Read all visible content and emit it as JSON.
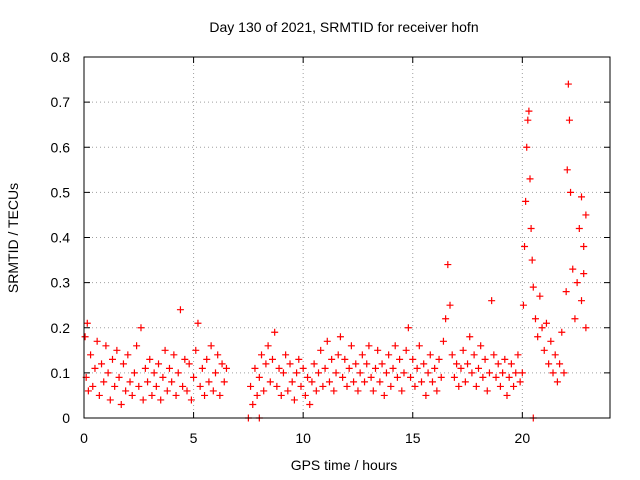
{
  "chart_data": {
    "type": "scatter",
    "title": "Day 130 of 2021, SRMTID for receiver hofn",
    "xlabel": "GPS time / hours",
    "ylabel": "SRMTID / TECUs",
    "xlim": [
      0,
      24
    ],
    "ylim": [
      0,
      0.8
    ],
    "xticks": [
      0,
      5,
      10,
      15,
      20
    ],
    "xtick_labels": [
      "0",
      "5",
      "10",
      "15",
      "20"
    ],
    "yticks": [
      0,
      0.1,
      0.2,
      0.3,
      0.4,
      0.5,
      0.6,
      0.7,
      0.8
    ],
    "ytick_labels": [
      "0",
      "0.1",
      "0.2",
      "0.3",
      "0.4",
      "0.5",
      "0.6",
      "0.7",
      "0.8"
    ],
    "grid": true,
    "marker": "+",
    "series": [
      {
        "name": "SRMTID",
        "color": "#ff0000",
        "points": [
          [
            0.05,
            0.18
          ],
          [
            0.1,
            0.09
          ],
          [
            0.15,
            0.21
          ],
          [
            0.2,
            0.06
          ],
          [
            0.3,
            0.14
          ],
          [
            0.4,
            0.07
          ],
          [
            0.5,
            0.11
          ],
          [
            0.6,
            0.17
          ],
          [
            0.7,
            0.05
          ],
          [
            0.8,
            0.12
          ],
          [
            0.9,
            0.08
          ],
          [
            1.0,
            0.16
          ],
          [
            1.1,
            0.1
          ],
          [
            1.2,
            0.04
          ],
          [
            1.3,
            0.13
          ],
          [
            1.4,
            0.07
          ],
          [
            1.5,
            0.15
          ],
          [
            1.6,
            0.09
          ],
          [
            1.7,
            0.03
          ],
          [
            1.8,
            0.12
          ],
          [
            1.9,
            0.06
          ],
          [
            2.0,
            0.14
          ],
          [
            2.1,
            0.08
          ],
          [
            2.2,
            0.05
          ],
          [
            2.3,
            0.1
          ],
          [
            2.4,
            0.16
          ],
          [
            2.5,
            0.07
          ],
          [
            2.6,
            0.2
          ],
          [
            2.7,
            0.04
          ],
          [
            2.8,
            0.11
          ],
          [
            2.9,
            0.08
          ],
          [
            3.0,
            0.13
          ],
          [
            3.1,
            0.05
          ],
          [
            3.2,
            0.1
          ],
          [
            3.3,
            0.07
          ],
          [
            3.4,
            0.12
          ],
          [
            3.5,
            0.04
          ],
          [
            3.6,
            0.09
          ],
          [
            3.7,
            0.15
          ],
          [
            3.8,
            0.06
          ],
          [
            3.9,
            0.11
          ],
          [
            4.0,
            0.08
          ],
          [
            4.1,
            0.14
          ],
          [
            4.2,
            0.05
          ],
          [
            4.3,
            0.1
          ],
          [
            4.4,
            0.24
          ],
          [
            4.5,
            0.07
          ],
          [
            4.6,
            0.13
          ],
          [
            4.7,
            0.06
          ],
          [
            4.8,
            0.12
          ],
          [
            4.9,
            0.04
          ],
          [
            5.0,
            0.09
          ],
          [
            5.1,
            0.15
          ],
          [
            5.2,
            0.21
          ],
          [
            5.3,
            0.07
          ],
          [
            5.4,
            0.11
          ],
          [
            5.5,
            0.05
          ],
          [
            5.6,
            0.13
          ],
          [
            5.7,
            0.08
          ],
          [
            5.8,
            0.16
          ],
          [
            5.9,
            0.06
          ],
          [
            6.0,
            0.1
          ],
          [
            6.1,
            0.14
          ],
          [
            6.2,
            0.05
          ],
          [
            6.3,
            0.12
          ],
          [
            6.4,
            0.08
          ],
          [
            6.5,
            0.11
          ],
          [
            7.5,
            0.0
          ],
          [
            8.0,
            0.0
          ],
          [
            7.6,
            0.07
          ],
          [
            7.7,
            0.03
          ],
          [
            7.8,
            0.11
          ],
          [
            7.9,
            0.05
          ],
          [
            8.0,
            0.09
          ],
          [
            8.1,
            0.14
          ],
          [
            8.2,
            0.06
          ],
          [
            8.3,
            0.12
          ],
          [
            8.4,
            0.16
          ],
          [
            8.5,
            0.08
          ],
          [
            8.6,
            0.13
          ],
          [
            8.7,
            0.19
          ],
          [
            8.8,
            0.07
          ],
          [
            8.9,
            0.11
          ],
          [
            9.0,
            0.05
          ],
          [
            9.1,
            0.1
          ],
          [
            9.2,
            0.14
          ],
          [
            9.3,
            0.06
          ],
          [
            9.4,
            0.12
          ],
          [
            9.5,
            0.08
          ],
          [
            9.6,
            0.04
          ],
          [
            9.7,
            0.1
          ],
          [
            9.8,
            0.13
          ],
          [
            9.9,
            0.07
          ],
          [
            10.0,
            0.11
          ],
          [
            10.1,
            0.05
          ],
          [
            10.2,
            0.09
          ],
          [
            10.3,
            0.03
          ],
          [
            10.4,
            0.08
          ],
          [
            10.5,
            0.12
          ],
          [
            10.6,
            0.06
          ],
          [
            10.7,
            0.1
          ],
          [
            10.8,
            0.15
          ],
          [
            10.9,
            0.07
          ],
          [
            11.0,
            0.11
          ],
          [
            11.1,
            0.17
          ],
          [
            11.2,
            0.08
          ],
          [
            11.3,
            0.13
          ],
          [
            11.4,
            0.06
          ],
          [
            11.5,
            0.1
          ],
          [
            11.6,
            0.14
          ],
          [
            11.7,
            0.18
          ],
          [
            11.8,
            0.09
          ],
          [
            11.9,
            0.13
          ],
          [
            12.0,
            0.07
          ],
          [
            12.1,
            0.11
          ],
          [
            12.2,
            0.16
          ],
          [
            12.3,
            0.08
          ],
          [
            12.4,
            0.12
          ],
          [
            12.5,
            0.06
          ],
          [
            12.6,
            0.1
          ],
          [
            12.7,
            0.14
          ],
          [
            12.8,
            0.08
          ],
          [
            12.9,
            0.12
          ],
          [
            13.0,
            0.16
          ],
          [
            13.1,
            0.09
          ],
          [
            13.2,
            0.06
          ],
          [
            13.3,
            0.11
          ],
          [
            13.4,
            0.15
          ],
          [
            13.5,
            0.08
          ],
          [
            13.6,
            0.12
          ],
          [
            13.7,
            0.05
          ],
          [
            13.8,
            0.1
          ],
          [
            13.9,
            0.14
          ],
          [
            14.0,
            0.07
          ],
          [
            14.1,
            0.11
          ],
          [
            14.2,
            0.16
          ],
          [
            14.3,
            0.09
          ],
          [
            14.4,
            0.13
          ],
          [
            14.5,
            0.06
          ],
          [
            14.6,
            0.1
          ],
          [
            14.7,
            0.15
          ],
          [
            14.8,
            0.2
          ],
          [
            14.9,
            0.09
          ],
          [
            15.0,
            0.13
          ],
          [
            15.1,
            0.07
          ],
          [
            15.2,
            0.11
          ],
          [
            15.3,
            0.16
          ],
          [
            15.4,
            0.08
          ],
          [
            15.5,
            0.12
          ],
          [
            15.6,
            0.05
          ],
          [
            15.7,
            0.1
          ],
          [
            15.8,
            0.14
          ],
          [
            15.9,
            0.08
          ],
          [
            16.0,
            0.11
          ],
          [
            16.1,
            0.06
          ],
          [
            16.2,
            0.13
          ],
          [
            16.3,
            0.09
          ],
          [
            16.4,
            0.17
          ],
          [
            16.5,
            0.22
          ],
          [
            16.6,
            0.34
          ],
          [
            16.7,
            0.25
          ],
          [
            16.8,
            0.14
          ],
          [
            16.9,
            0.09
          ],
          [
            17.0,
            0.12
          ],
          [
            17.1,
            0.07
          ],
          [
            17.2,
            0.11
          ],
          [
            17.3,
            0.15
          ],
          [
            17.4,
            0.08
          ],
          [
            17.5,
            0.12
          ],
          [
            17.6,
            0.18
          ],
          [
            17.7,
            0.1
          ],
          [
            17.8,
            0.14
          ],
          [
            17.9,
            0.07
          ],
          [
            18.0,
            0.11
          ],
          [
            18.1,
            0.16
          ],
          [
            18.2,
            0.09
          ],
          [
            18.3,
            0.13
          ],
          [
            18.4,
            0.06
          ],
          [
            18.5,
            0.1
          ],
          [
            18.6,
            0.26
          ],
          [
            18.7,
            0.14
          ],
          [
            18.8,
            0.09
          ],
          [
            18.9,
            0.12
          ],
          [
            19.0,
            0.07
          ],
          [
            19.1,
            0.1
          ],
          [
            19.2,
            0.13
          ],
          [
            19.3,
            0.05
          ],
          [
            19.4,
            0.09
          ],
          [
            19.5,
            0.12
          ],
          [
            19.6,
            0.07
          ],
          [
            19.7,
            0.1
          ],
          [
            19.8,
            0.14
          ],
          [
            19.9,
            0.08
          ],
          [
            20.0,
            0.1
          ],
          [
            20.05,
            0.25
          ],
          [
            20.1,
            0.38
          ],
          [
            20.15,
            0.48
          ],
          [
            20.2,
            0.6
          ],
          [
            20.25,
            0.66
          ],
          [
            20.3,
            0.68
          ],
          [
            20.35,
            0.53
          ],
          [
            20.4,
            0.42
          ],
          [
            20.45,
            0.35
          ],
          [
            20.5,
            0.29
          ],
          [
            20.6,
            0.22
          ],
          [
            20.7,
            0.18
          ],
          [
            20.8,
            0.27
          ],
          [
            20.9,
            0.2
          ],
          [
            21.0,
            0.15
          ],
          [
            21.1,
            0.21
          ],
          [
            21.2,
            0.12
          ],
          [
            21.3,
            0.17
          ],
          [
            21.4,
            0.1
          ],
          [
            21.5,
            0.14
          ],
          [
            21.6,
            0.08
          ],
          [
            21.7,
            0.12
          ],
          [
            21.8,
            0.19
          ],
          [
            21.9,
            0.1
          ],
          [
            22.0,
            0.28
          ],
          [
            22.05,
            0.55
          ],
          [
            22.1,
            0.74
          ],
          [
            22.15,
            0.66
          ],
          [
            22.2,
            0.5
          ],
          [
            22.3,
            0.33
          ],
          [
            22.4,
            0.22
          ],
          [
            22.5,
            0.3
          ],
          [
            22.6,
            0.42
          ],
          [
            22.7,
            0.49
          ],
          [
            22.8,
            0.38
          ],
          [
            22.9,
            0.45
          ],
          [
            22.7,
            0.26
          ],
          [
            22.8,
            0.32
          ],
          [
            22.9,
            0.2
          ],
          [
            20.5,
            0.0
          ]
        ]
      }
    ]
  }
}
